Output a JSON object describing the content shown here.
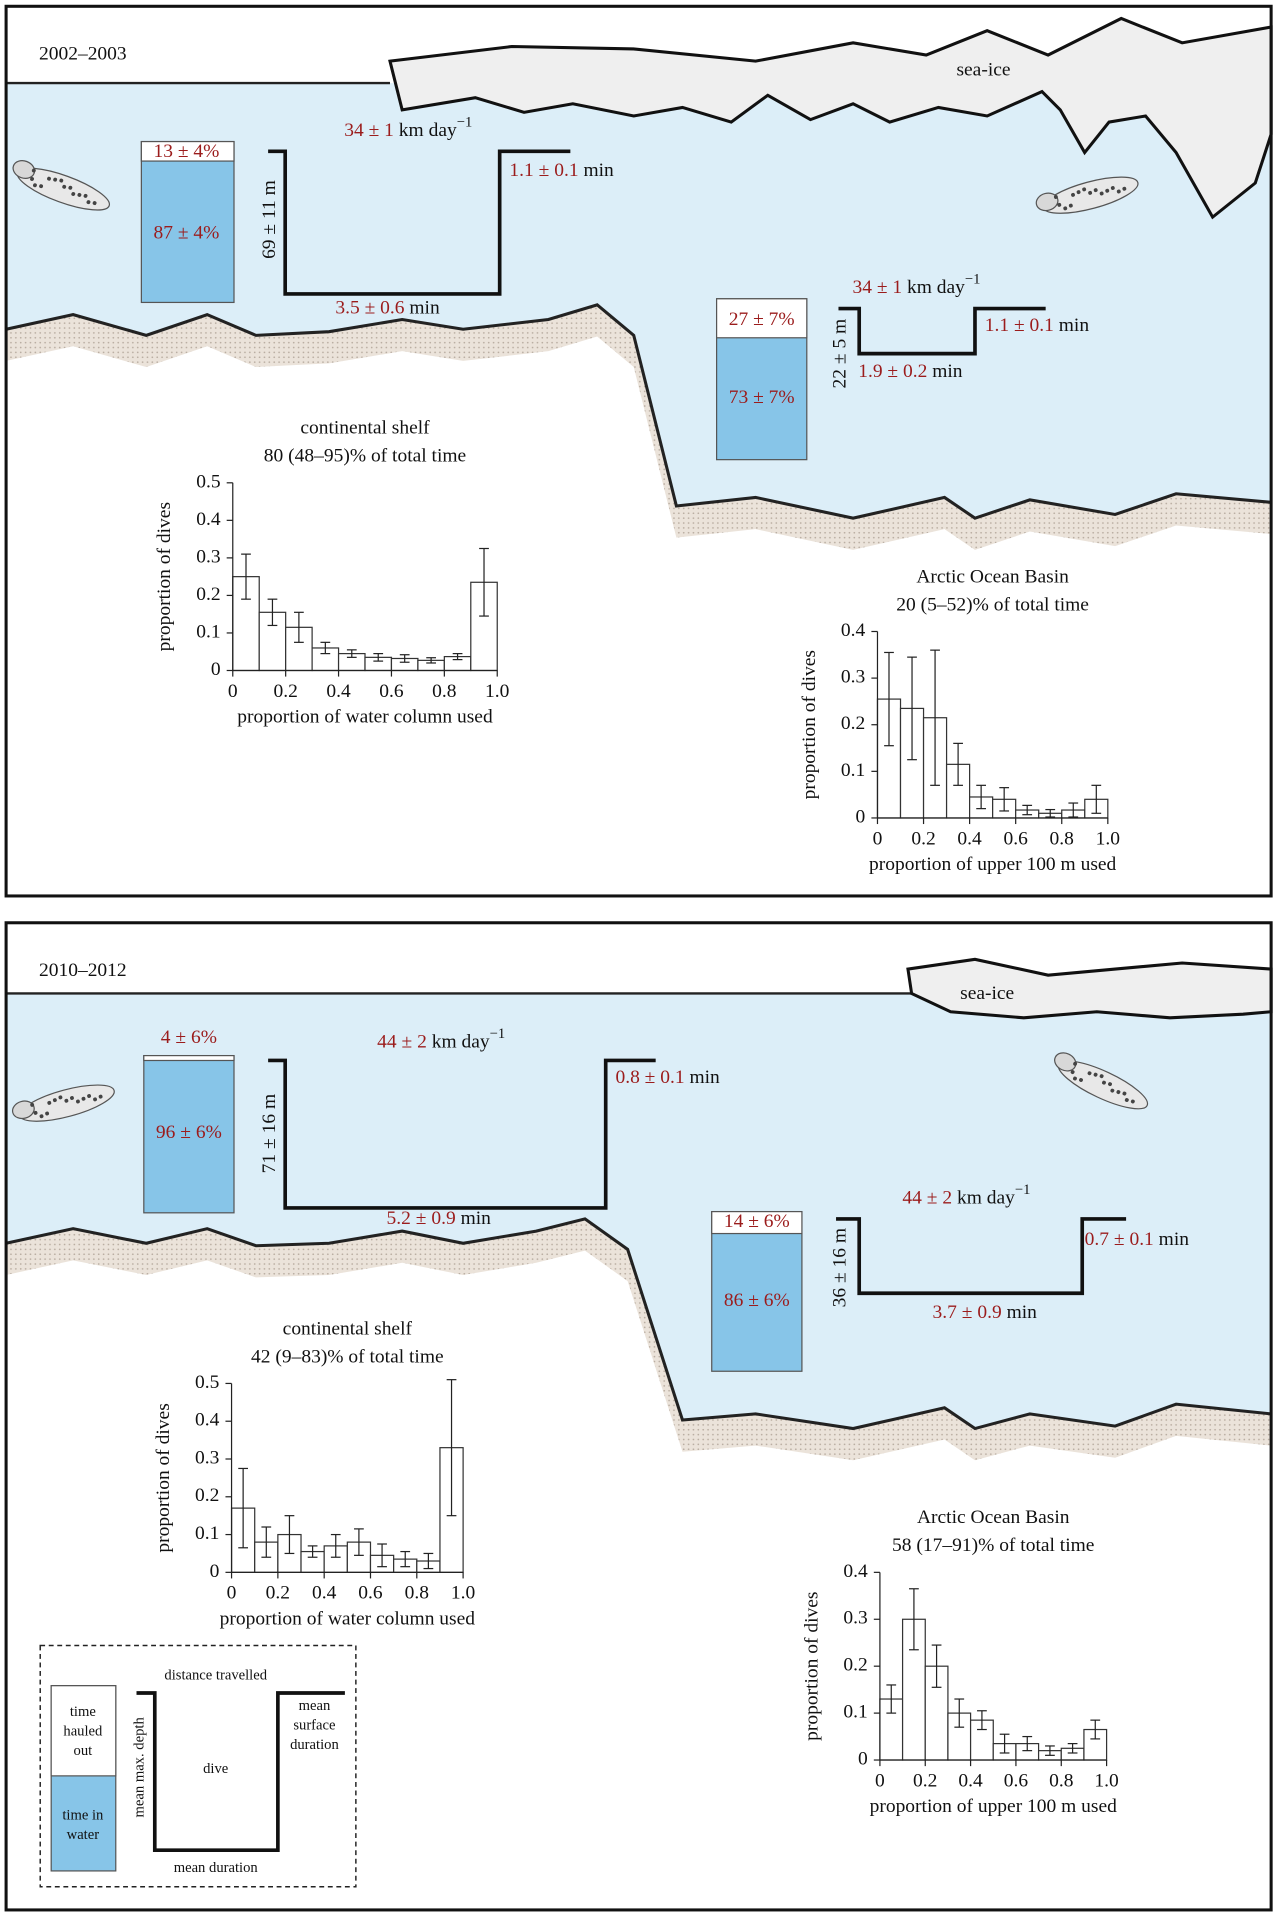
{
  "panels": [
    {
      "period": "2002–2003",
      "sea_ice": "sea-ice",
      "dives": [
        {
          "hauled_out": "13 ± 4%",
          "in_water": "87 ± 4%",
          "depth": "69 ± 11 m",
          "distance": {
            "value": "34 ± 1",
            "unit": "km day",
            "exponent": "−1"
          },
          "surface": {
            "value": "1.1 ± 0.1",
            "unit": "min"
          },
          "duration": {
            "value": "3.5 ± 0.6",
            "unit": "min"
          }
        },
        {
          "hauled_out": "27 ± 7%",
          "in_water": "73 ± 7%",
          "depth": "22 ± 5 m",
          "distance": {
            "value": "34 ± 1",
            "unit": "km day",
            "exponent": "−1"
          },
          "surface": {
            "value": "1.1 ± 0.1",
            "unit": "min"
          },
          "duration": {
            "value": "1.9 ± 0.2",
            "unit": "min"
          }
        }
      ]
    },
    {
      "period": "2010–2012",
      "sea_ice": "sea-ice",
      "dives": [
        {
          "hauled_out": "4 ± 6%",
          "in_water": "96 ± 6%",
          "depth": "71 ± 16 m",
          "distance": {
            "value": "44 ± 2",
            "unit": "km day",
            "exponent": "−1"
          },
          "surface": {
            "value": "0.8 ± 0.1",
            "unit": "min"
          },
          "duration": {
            "value": "5.2 ± 0.9",
            "unit": "min"
          }
        },
        {
          "hauled_out": "14 ± 6%",
          "in_water": "86 ± 6%",
          "depth": "36 ± 16 m",
          "distance": {
            "value": "44 ± 2",
            "unit": "km day",
            "exponent": "−1"
          },
          "surface": {
            "value": "0.7 ± 0.1",
            "unit": "min"
          },
          "duration": {
            "value": "3.7 ± 0.9",
            "unit": "min"
          }
        }
      ]
    }
  ],
  "legend": {
    "hauled_out": [
      "time",
      "hauled",
      "out"
    ],
    "in_water": [
      "time in",
      "water"
    ],
    "depth": "mean max. depth",
    "distance": "distance travelled",
    "dive": "dive",
    "surface": [
      "mean",
      "surface",
      "duration"
    ],
    "duration": "mean duration"
  },
  "chart_data": [
    {
      "type": "histogram",
      "title": "continental shelf",
      "subtitle": "80 (48–95)% of total time",
      "xlabel": "proportion of water column used",
      "ylabel": "proportion of dives",
      "color": "#ffffff",
      "bins": [
        0,
        0.1,
        0.2,
        0.3,
        0.4,
        0.5,
        0.6,
        0.7,
        0.8,
        0.9,
        1
      ],
      "values": [
        0.25,
        0.155,
        0.115,
        0.06,
        0.045,
        0.035,
        0.032,
        0.027,
        0.037,
        0.235
      ],
      "errors": [
        0.06,
        0.035,
        0.04,
        0.015,
        0.01,
        0.01,
        0.01,
        0.007,
        0.008,
        0.09
      ],
      "xlim": [
        0,
        1
      ],
      "ylim": [
        0,
        0.5
      ],
      "xticks": [
        0,
        0.2,
        0.4,
        0.6,
        0.8,
        {
          "value": 1,
          "label": "1.0"
        }
      ],
      "yticks": [
        0,
        0.1,
        0.2,
        0.3,
        0.4,
        0.5
      ]
    },
    {
      "type": "histogram",
      "title": "Arctic Ocean Basin",
      "subtitle": "20 (5–52)% of total time",
      "xlabel": "proportion of upper 100 m used",
      "ylabel": "proportion of dives",
      "color": "#ffffff",
      "bins": [
        0,
        0.1,
        0.2,
        0.3,
        0.4,
        0.5,
        0.6,
        0.7,
        0.8,
        0.9,
        1
      ],
      "values": [
        0.255,
        0.235,
        0.215,
        0.115,
        0.045,
        0.04,
        0.017,
        0.01,
        0.017,
        0.04
      ],
      "errors": [
        0.1,
        0.11,
        0.145,
        0.045,
        0.025,
        0.025,
        0.01,
        0.008,
        0.015,
        0.03
      ],
      "xlim": [
        0,
        1
      ],
      "ylim": [
        0,
        0.4
      ],
      "xticks": [
        0,
        0.2,
        0.4,
        0.6,
        0.8,
        {
          "value": 1,
          "label": "1.0"
        }
      ],
      "yticks": [
        0,
        0.1,
        0.2,
        0.3,
        0.4
      ]
    },
    {
      "type": "histogram",
      "title": "continental shelf",
      "subtitle": "42 (9–83)% of total time",
      "xlabel": "proportion of water column used",
      "ylabel": "proportion of dives",
      "color": "#ffffff",
      "bins": [
        0,
        0.1,
        0.2,
        0.3,
        0.4,
        0.5,
        0.6,
        0.7,
        0.8,
        0.9,
        1
      ],
      "values": [
        0.17,
        0.08,
        0.1,
        0.055,
        0.07,
        0.08,
        0.045,
        0.035,
        0.03,
        0.33
      ],
      "errors": [
        0.105,
        0.04,
        0.05,
        0.015,
        0.03,
        0.035,
        0.03,
        0.02,
        0.02,
        0.18
      ],
      "xlim": [
        0,
        1
      ],
      "ylim": [
        0,
        0.5
      ],
      "xticks": [
        0,
        0.2,
        0.4,
        0.6,
        0.8,
        {
          "value": 1,
          "label": "1.0"
        }
      ],
      "yticks": [
        0,
        0.1,
        0.2,
        0.3,
        0.4,
        0.5
      ]
    },
    {
      "type": "histogram",
      "title": "Arctic Ocean Basin",
      "subtitle": "58 (17–91)% of total time",
      "xlabel": "proportion of upper 100 m used",
      "ylabel": "proportion of dives",
      "color": "#ffffff",
      "bins": [
        0,
        0.1,
        0.2,
        0.3,
        0.4,
        0.5,
        0.6,
        0.7,
        0.8,
        0.9,
        1
      ],
      "values": [
        0.13,
        0.3,
        0.2,
        0.1,
        0.085,
        0.035,
        0.035,
        0.02,
        0.025,
        0.065
      ],
      "errors": [
        0.03,
        0.065,
        0.045,
        0.03,
        0.02,
        0.02,
        0.015,
        0.01,
        0.01,
        0.02
      ],
      "xlim": [
        0,
        1
      ],
      "ylim": [
        0,
        0.4
      ],
      "xticks": [
        0,
        0.2,
        0.4,
        0.6,
        0.8,
        {
          "value": 1,
          "label": "1.0"
        }
      ],
      "yticks": [
        0,
        0.1,
        0.2,
        0.3,
        0.4
      ]
    }
  ]
}
